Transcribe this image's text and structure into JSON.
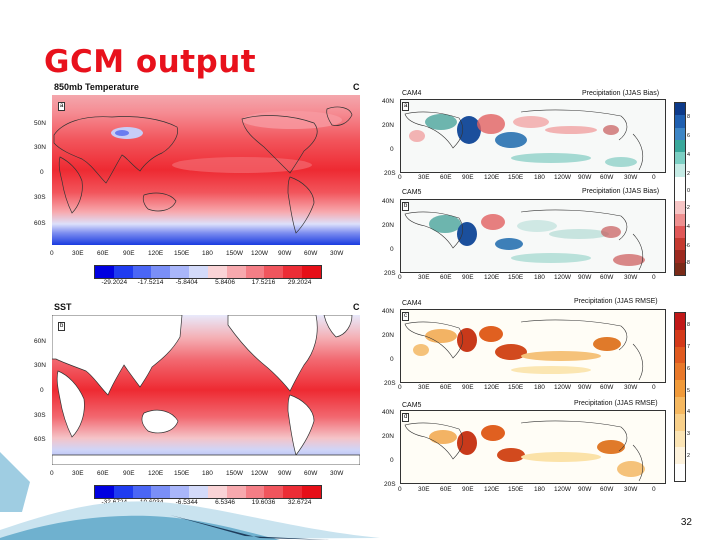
{
  "slide": {
    "title": "GCM output",
    "page_number": "32"
  },
  "left_top": {
    "title": "850mb Temperature",
    "panel_letter": "a",
    "corner": "C",
    "lat_labels": [
      "50N",
      "30N",
      "0",
      "30S",
      "60S"
    ],
    "lon_labels": [
      "0",
      "30E",
      "60E",
      "90E",
      "120E",
      "150E",
      "180",
      "150W",
      "120W",
      "90W",
      "60W",
      "30W"
    ],
    "colorbar_labels": [
      "-29.2024",
      "-17.5214",
      "-5.8404",
      "5.8406",
      "17.5216",
      "29.2024"
    ],
    "colors": {
      "cold": "#1a3be0",
      "warm": "#ee1c24"
    }
  },
  "left_bottom": {
    "title": "SST",
    "panel_letter": "b",
    "corner": "C",
    "lat_labels": [
      "60N",
      "30N",
      "0",
      "30S",
      "60S"
    ],
    "lon_labels": [
      "0",
      "30E",
      "60E",
      "90E",
      "120E",
      "150E",
      "180",
      "150W",
      "120W",
      "90W",
      "60W",
      "30W"
    ],
    "colorbar_labels": [
      "-32.6724",
      "-19.6034",
      "-6.5344",
      "6.5346",
      "19.6036",
      "32.6724"
    ]
  },
  "right": {
    "panels": [
      {
        "model": "CAM4",
        "letter": "a",
        "title": "Precipitation (JJAS Bias)"
      },
      {
        "model": "CAM5",
        "letter": "b",
        "title": "Precipitation (JJAS Bias)"
      },
      {
        "model": "CAM4",
        "letter": "c",
        "title": "Precipitation (JJAS RMSE)"
      },
      {
        "model": "CAM5",
        "letter": "d",
        "title": "Precipitation (JJAS RMSE)"
      }
    ],
    "lat_labels": [
      "40N",
      "20N",
      "0",
      "20S"
    ],
    "lon_labels": [
      "0",
      "30E",
      "60E",
      "90E",
      "120E",
      "150E",
      "180",
      "120W",
      "90W",
      "60W",
      "30W",
      "0"
    ],
    "bias_colorbar_labels": [
      "8",
      "6",
      "4",
      "2",
      "0",
      "-2",
      "-4",
      "-6",
      "-8"
    ],
    "rmse_colorbar_labels": [
      "8",
      "7",
      "6",
      "5",
      "4",
      "3",
      "2"
    ]
  }
}
